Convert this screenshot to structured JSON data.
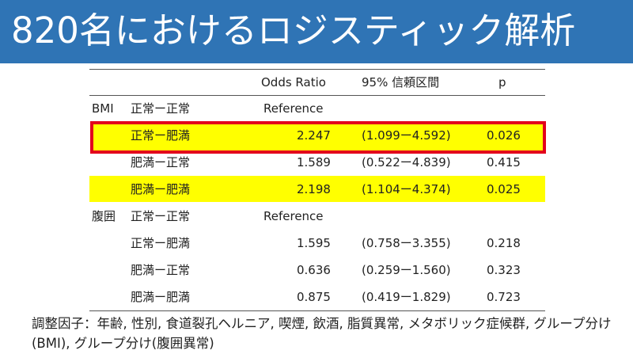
{
  "header": {
    "title": "820名におけるロジスティック解析",
    "background": "#2f74b5"
  },
  "table": {
    "columns": {
      "odds_ratio": "Odds Ratio",
      "ci": "95% 信頼区間",
      "p": "p"
    },
    "rows": [
      {
        "group": "BMI",
        "category": "正常ー正常",
        "or": "Reference",
        "ci": "",
        "p": "",
        "highlight": false
      },
      {
        "group": "",
        "category": "正常ー肥満",
        "or": "2.247",
        "ci": "(1.099ー4.592)",
        "p": "0.026",
        "highlight": true,
        "boxed": true
      },
      {
        "group": "",
        "category": "肥満ー正常",
        "or": "1.589",
        "ci": "(0.522ー4.839)",
        "p": "0.415",
        "highlight": false
      },
      {
        "group": "",
        "category": "肥満ー肥満",
        "or": "2.198",
        "ci": "(1.104ー4.374)",
        "p": "0.025",
        "highlight": true
      },
      {
        "group": "腹囲",
        "category": "正常ー正常",
        "or": "Reference",
        "ci": "",
        "p": "",
        "highlight": false
      },
      {
        "group": "",
        "category": "正常ー肥満",
        "or": "1.595",
        "ci": "(0.758ー3.355)",
        "p": "0.218",
        "highlight": false
      },
      {
        "group": "",
        "category": "肥満ー正常",
        "or": "0.636",
        "ci": "(0.259ー1.560)",
        "p": "0.323",
        "highlight": false
      },
      {
        "group": "",
        "category": "肥満ー肥満",
        "or": "0.875",
        "ci": "(0.419ー1.829)",
        "p": "0.723",
        "highlight": false
      }
    ],
    "highlight_color": "#ffff00",
    "box_color": "#e3001b"
  },
  "footnote": "調整因子：年齢, 性別, 食道裂孔ヘルニア, 喫煙, 飲酒, 脂質異常, メタボリック症候群, グループ分け(BMI), グループ分け(腹囲異常)"
}
